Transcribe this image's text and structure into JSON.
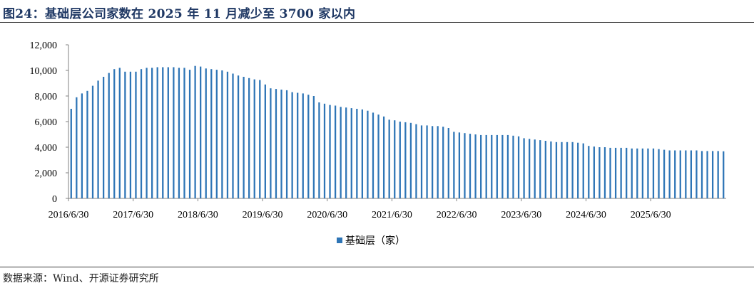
{
  "figure_title": "图24：基础层公司家数在 2025 年 11 月减少至 3700 家以内",
  "source_note": "数据来源：Wind、开源证券研究所",
  "colors": {
    "bar": "#2e75b6",
    "axis": "#808080",
    "title": "#1f3864"
  },
  "chart_data": {
    "type": "bar",
    "title": "",
    "xlabel": "",
    "ylabel": "",
    "ylim": [
      0,
      12000
    ],
    "yticks": [
      "0",
      "2,000",
      "4,000",
      "6,000",
      "8,000",
      "10,000",
      "12,000"
    ],
    "xticks": [
      "2016/6/30",
      "2017/6/30",
      "2018/6/30",
      "2019/6/30",
      "2020/6/30",
      "2021/6/30",
      "2022/6/30",
      "2023/6/30",
      "2024/6/30",
      "2025/6/30"
    ],
    "grid": false,
    "legend": "bottom-center",
    "series": [
      {
        "name": "基础层（家）",
        "values": [
          7000,
          7900,
          8200,
          8400,
          8800,
          9200,
          9500,
          9800,
          10100,
          10200,
          9900,
          9900,
          9900,
          10100,
          10200,
          10200,
          10250,
          10250,
          10250,
          10250,
          10200,
          10200,
          10050,
          10350,
          10300,
          10150,
          10100,
          10050,
          10000,
          9900,
          9750,
          9600,
          9500,
          9400,
          9300,
          9250,
          8900,
          8600,
          8550,
          8500,
          8450,
          8300,
          8250,
          8200,
          8100,
          8000,
          7500,
          7400,
          7300,
          7250,
          7150,
          7100,
          7050,
          7000,
          6950,
          6850,
          6700,
          6550,
          6400,
          6150,
          6100,
          6000,
          5950,
          5900,
          5800,
          5700,
          5700,
          5650,
          5650,
          5600,
          5500,
          5200,
          5150,
          5100,
          5050,
          5000,
          4950,
          4950,
          4950,
          4950,
          4950,
          4950,
          4900,
          4850,
          4700,
          4650,
          4600,
          4550,
          4500,
          4450,
          4400,
          4400,
          4400,
          4400,
          4350,
          4300,
          4100,
          4050,
          4000,
          4000,
          3950,
          3950,
          3950,
          3950,
          3900,
          3900,
          3900,
          3900,
          3900,
          3850,
          3800,
          3750,
          3750,
          3750,
          3750,
          3750,
          3750,
          3700,
          3700,
          3700,
          3700,
          3680
        ]
      }
    ]
  }
}
